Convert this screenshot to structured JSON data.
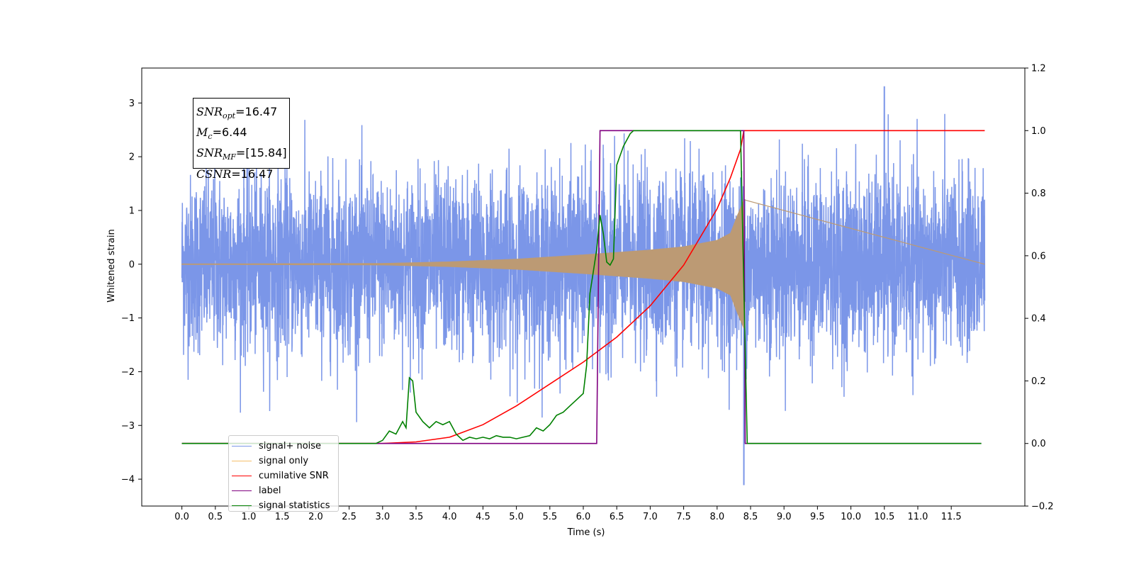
{
  "chart_data": {
    "type": "line",
    "xlabel": "Time (s)",
    "ylabel": "Whitened strain",
    "xlim": [
      -0.6,
      12.6
    ],
    "ylim": [
      -4.5,
      3.65
    ],
    "y2lim": [
      -0.2,
      1.2
    ],
    "xticks": [
      "0.0",
      "0.5",
      "1.0",
      "1.5",
      "2.0",
      "2.5",
      "3.0",
      "3.5",
      "4.0",
      "4.5",
      "5.0",
      "5.5",
      "6.0",
      "6.5",
      "7.0",
      "7.5",
      "8.0",
      "8.5",
      "9.0",
      "9.5",
      "10.0",
      "10.5",
      "11.0",
      "11.5"
    ],
    "yticks": [
      "3",
      "2",
      "1",
      "0",
      "−1",
      "−2",
      "−3",
      "−4"
    ],
    "y2ticks": [
      "1.2",
      "1.0",
      "0.8",
      "0.6",
      "0.4",
      "0.2",
      "0.0",
      "−0.2"
    ],
    "legend_position": "lower-left",
    "annotation": {
      "snr_opt": "=16.47",
      "mc": "=6.44",
      "snr_mf": "=[15.84]",
      "csnr": "=16.47"
    },
    "series": [
      {
        "name": "signal+ noise",
        "color": "#7b96e8",
        "axis": "left",
        "description_values": "noise band approx ±2.4 (peaks to 3.3 at t≈10.5, min −4.1 at t≈8.4), t from 0 to 12",
        "x_range": [
          0,
          12
        ]
      },
      {
        "name": "signal only",
        "color": "#f5c06b",
        "axis": "left",
        "x_range": [
          0,
          8.4
        ],
        "envelope": {
          "x": [
            0,
            3.0,
            4.0,
            5.0,
            6.0,
            7.0,
            7.5,
            8.0,
            8.2,
            8.3,
            8.4
          ],
          "amp": [
            0.01,
            0.02,
            0.05,
            0.1,
            0.18,
            0.27,
            0.33,
            0.45,
            0.58,
            0.9,
            1.2
          ]
        }
      },
      {
        "name": "cumilative SNR",
        "color": "#ff0000",
        "axis": "right",
        "x": [
          0,
          3.0,
          3.5,
          4.0,
          4.5,
          5.0,
          5.5,
          6.0,
          6.5,
          7.0,
          7.5,
          8.0,
          8.2,
          8.35,
          8.4,
          12.0
        ],
        "y": [
          0.0,
          0.0,
          0.005,
          0.02,
          0.06,
          0.12,
          0.19,
          0.26,
          0.34,
          0.44,
          0.57,
          0.75,
          0.85,
          0.94,
          1.0,
          1.0
        ]
      },
      {
        "name": "label",
        "color": "#800080",
        "axis": "right",
        "x": [
          0,
          6.2,
          6.25,
          8.4,
          8.42,
          11.95
        ],
        "y": [
          0,
          0,
          1,
          1,
          0,
          0
        ]
      },
      {
        "name": "signal statistics",
        "color": "#008000",
        "axis": "right",
        "x": [
          0,
          2.9,
          3.0,
          3.1,
          3.2,
          3.3,
          3.35,
          3.4,
          3.45,
          3.5,
          3.6,
          3.7,
          3.8,
          3.9,
          4.0,
          4.1,
          4.2,
          4.3,
          4.4,
          4.5,
          4.6,
          4.7,
          4.8,
          4.9,
          5.0,
          5.1,
          5.2,
          5.3,
          5.4,
          5.5,
          5.6,
          5.7,
          5.8,
          5.9,
          6.0,
          6.05,
          6.1,
          6.15,
          6.2,
          6.25,
          6.3,
          6.35,
          6.4,
          6.45,
          6.5,
          6.55,
          6.6,
          6.65,
          6.7,
          6.75,
          6.8,
          6.9,
          7.0,
          8.2,
          8.3,
          8.35,
          8.45,
          11.95
        ],
        "y": [
          0,
          0,
          0.01,
          0.04,
          0.03,
          0.07,
          0.05,
          0.21,
          0.2,
          0.1,
          0.07,
          0.05,
          0.07,
          0.06,
          0.07,
          0.03,
          0.01,
          0.02,
          0.015,
          0.02,
          0.015,
          0.025,
          0.02,
          0.02,
          0.015,
          0.02,
          0.025,
          0.05,
          0.04,
          0.06,
          0.09,
          0.1,
          0.12,
          0.14,
          0.16,
          0.25,
          0.48,
          0.55,
          0.62,
          0.73,
          0.67,
          0.58,
          0.57,
          0.59,
          0.89,
          0.92,
          0.95,
          0.97,
          0.99,
          1.0,
          1.0,
          1.0,
          1.0,
          1.0,
          1.0,
          1.0,
          0.0,
          0.0
        ]
      }
    ],
    "legend_entries": [
      "signal+ noise",
      "signal only",
      "cumilative SNR",
      "label",
      "signal statistics"
    ]
  }
}
